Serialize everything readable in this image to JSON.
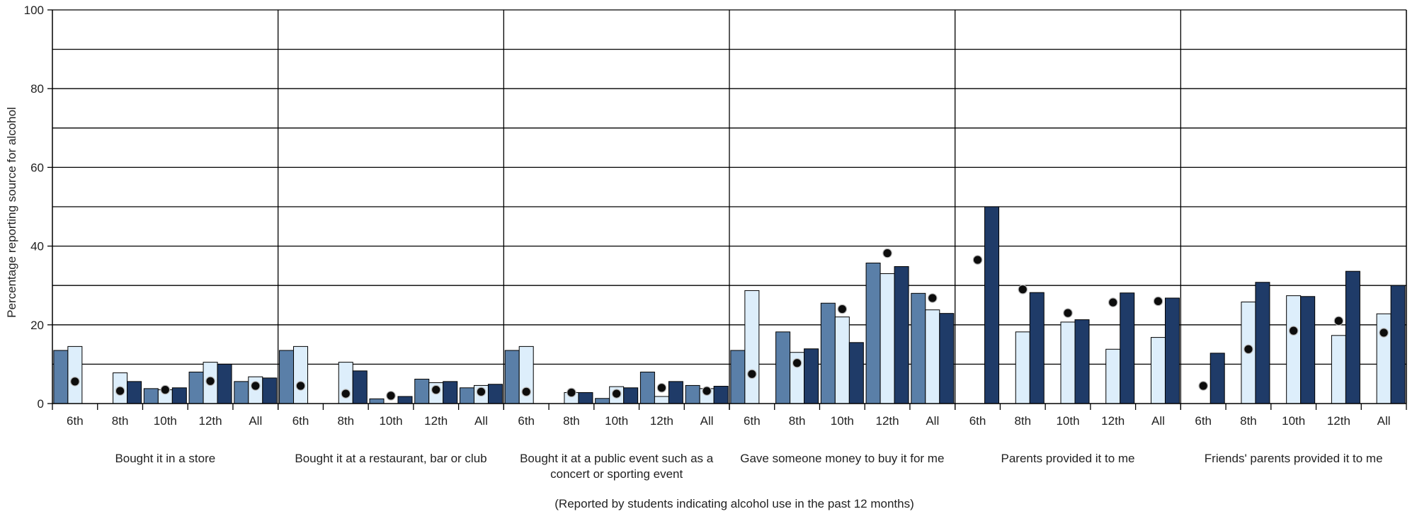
{
  "chart_data": {
    "type": "bar",
    "ylabel": "Percentage reporting source for alcohol",
    "xlabel": "(Reported by students indicating alcohol use in the past 12 months)",
    "ylim": [
      0,
      100
    ],
    "yticks": [
      0,
      20,
      40,
      60,
      80,
      100
    ],
    "grid": true,
    "subcategories": [
      "6th",
      "8th",
      "10th",
      "12th",
      "All"
    ],
    "colors": {
      "series1": "#5a7fa8",
      "series2": "#ddeefb",
      "series3": "#1f3b68",
      "marker": "#0d0d0d",
      "axis": "#000000"
    },
    "groups": [
      {
        "label_lines": [
          "Bought it in a store"
        ],
        "series": [
          [
            13.5,
            0,
            3.8,
            8.0,
            5.6
          ],
          [
            14.5,
            7.8,
            3.5,
            10.5,
            6.8
          ],
          [
            0,
            5.6,
            4.0,
            10.0,
            6.5
          ]
        ],
        "markers": [
          5.6,
          3.2,
          3.5,
          5.7,
          4.5
        ]
      },
      {
        "label_lines": [
          "Bought it at a restaurant, bar or club"
        ],
        "series": [
          [
            13.5,
            0,
            1.2,
            6.2,
            4.0
          ],
          [
            14.5,
            10.5,
            0,
            5.3,
            4.6
          ],
          [
            0,
            8.3,
            1.8,
            5.6,
            4.9
          ]
        ],
        "markers": [
          4.5,
          2.5,
          2.0,
          3.5,
          3.0
        ]
      },
      {
        "label_lines": [
          "Bought it at a public event such as a",
          "concert or sporting event"
        ],
        "series": [
          [
            13.5,
            0,
            1.3,
            8.0,
            4.6
          ],
          [
            14.5,
            2.8,
            4.3,
            1.8,
            3.8
          ],
          [
            0,
            2.8,
            4.0,
            5.6,
            4.4
          ]
        ],
        "markers": [
          3.0,
          2.8,
          2.5,
          4.0,
          3.2
        ]
      },
      {
        "label_lines": [
          "Gave someone money to buy it for me"
        ],
        "series": [
          [
            13.5,
            18.2,
            25.5,
            35.7,
            28.0
          ],
          [
            28.7,
            13.0,
            22.0,
            33.0,
            23.8
          ],
          [
            0,
            13.9,
            15.5,
            34.8,
            22.9
          ]
        ],
        "markers": [
          7.5,
          10.3,
          24.0,
          38.2,
          26.8
        ]
      },
      {
        "label_lines": [
          "Parents provided it to me"
        ],
        "series": [
          [
            0,
            0,
            0,
            0,
            0
          ],
          [
            0,
            18.2,
            20.7,
            13.8,
            16.8
          ],
          [
            50.0,
            28.2,
            21.3,
            28.1,
            26.8
          ]
        ],
        "markers": [
          36.5,
          29.0,
          23.0,
          25.7,
          26.0
        ]
      },
      {
        "label_lines": [
          "Friends' parents provided it to me"
        ],
        "series": [
          [
            0,
            0,
            0,
            0,
            0
          ],
          [
            0,
            25.8,
            27.4,
            17.3,
            22.8
          ],
          [
            12.8,
            30.8,
            27.2,
            33.6,
            30.0
          ]
        ],
        "markers": [
          4.5,
          13.8,
          18.5,
          21.0,
          18.0
        ]
      }
    ]
  }
}
